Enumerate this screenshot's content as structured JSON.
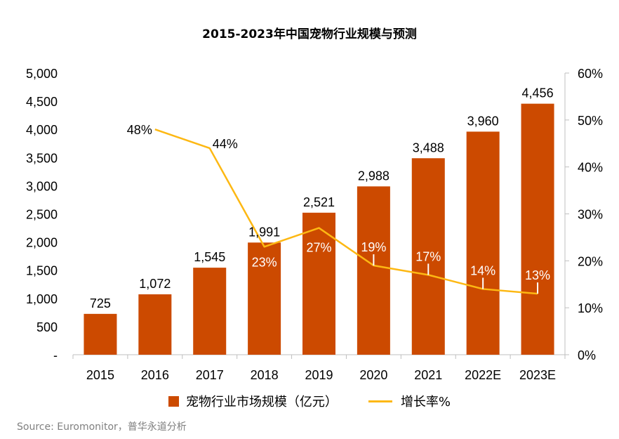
{
  "colors": {
    "bar": "#CC4A00",
    "line": "#FDB813",
    "axis": "#BFBFBF",
    "text": "#000000",
    "source": "#808080"
  },
  "chart_data": {
    "type": "bar",
    "title": "2015-2023年中国宠物行业规模与预测",
    "categories": [
      "2015",
      "2016",
      "2017",
      "2018",
      "2019",
      "2020",
      "2021",
      "2022E",
      "2023E"
    ],
    "series": [
      {
        "name": "宠物行业市场规模（亿元）",
        "type": "bar",
        "axis": "left",
        "values": [
          725,
          1072,
          1545,
          1991,
          2521,
          2988,
          3488,
          3960,
          4456
        ],
        "labels": [
          "725",
          "1,072",
          "1,545",
          "1,991",
          "2,521",
          "2,988",
          "3,488",
          "3,960",
          "4,456"
        ]
      },
      {
        "name": "增长率%",
        "type": "line",
        "axis": "right",
        "values": [
          null,
          48,
          44,
          23,
          27,
          19,
          17,
          14,
          13
        ],
        "labels": [
          "",
          "48%",
          "44%",
          "23%",
          "27%",
          "19%",
          "17%",
          "14%",
          "13%"
        ]
      }
    ],
    "ylim_left": [
      0,
      5000
    ],
    "yticks_left": [
      "-",
      "500",
      "1,000",
      "1,500",
      "2,000",
      "2,500",
      "3,000",
      "3,500",
      "4,000",
      "4,500",
      "5,000"
    ],
    "ylim_right": [
      0,
      60
    ],
    "yticks_right": [
      "0%",
      "10%",
      "20%",
      "30%",
      "40%",
      "50%",
      "60%"
    ],
    "legend_position": "bottom",
    "grid": false
  },
  "source": "Source: Euromonitor，普华永道分析"
}
